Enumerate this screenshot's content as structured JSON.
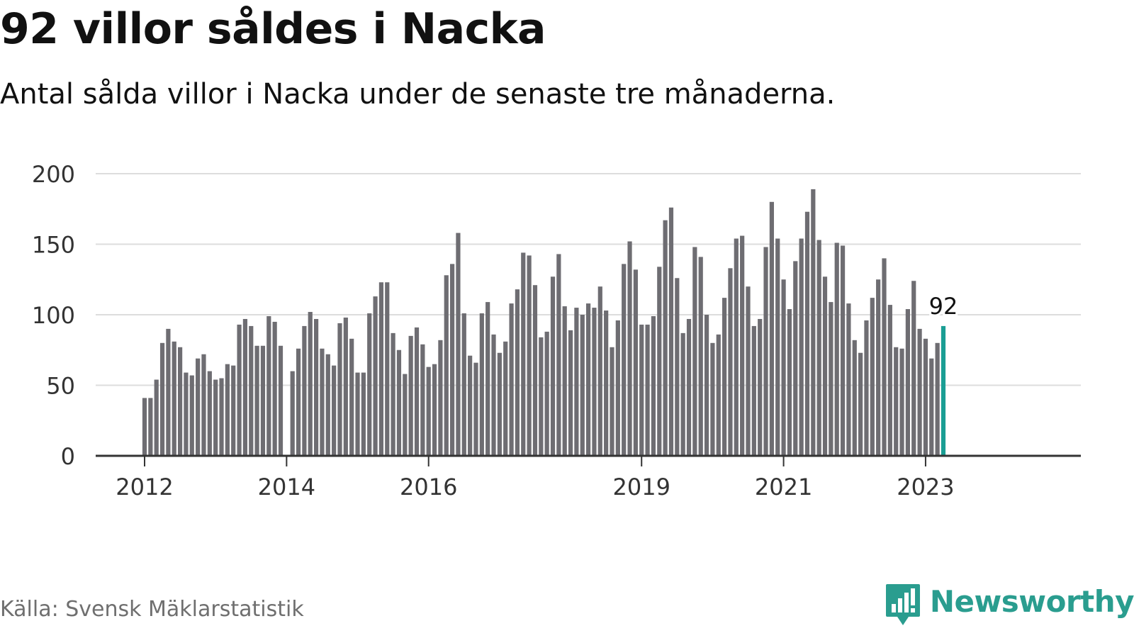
{
  "title": "92 villor såldes i Nacka",
  "subtitle": "Antal sålda villor i Nacka under de senaste tre månaderna.",
  "source": "Källa: Svensk Mäklarstatistik",
  "brand": {
    "name": "Newsworthy",
    "icon": "newsworthy-logo-icon",
    "color": "#2a9d8f"
  },
  "colors": {
    "bar": "#6e6d72",
    "highlight": "#1a9e94",
    "grid": "#dddddd",
    "axis": "#333333",
    "tick_text": "#333333"
  },
  "chart_data": {
    "type": "bar",
    "title": "92 villor såldes i Nacka",
    "xlabel": "",
    "ylabel": "",
    "ylim": [
      0,
      200
    ],
    "yticks": [
      0,
      50,
      100,
      150,
      200
    ],
    "grid": true,
    "start": "2012-01",
    "xticks": [
      {
        "label": "2012",
        "index": 0
      },
      {
        "label": "2014",
        "index": 24
      },
      {
        "label": "2016",
        "index": 48
      },
      {
        "label": "2019",
        "index": 84
      },
      {
        "label": "2021",
        "index": 108
      },
      {
        "label": "2023",
        "index": 132
      }
    ],
    "series": [
      {
        "name": "Antal sålda villor (rullande tre månader)",
        "values": [
          41,
          41,
          54,
          80,
          90,
          81,
          77,
          59,
          57,
          69,
          72,
          60,
          54,
          55,
          65,
          64,
          93,
          97,
          92,
          78,
          78,
          99,
          95,
          78,
          0,
          60,
          76,
          92,
          102,
          97,
          76,
          72,
          64,
          94,
          98,
          83,
          59,
          59,
          101,
          113,
          123,
          123,
          87,
          75,
          58,
          85,
          91,
          79,
          63,
          65,
          82,
          128,
          136,
          158,
          101,
          71,
          66,
          101,
          109,
          86,
          73,
          81,
          108,
          118,
          144,
          142,
          121,
          84,
          88,
          127,
          143,
          106,
          89,
          105,
          100,
          108,
          105,
          120,
          103,
          77,
          96,
          136,
          152,
          132,
          93,
          93,
          99,
          134,
          167,
          176,
          126,
          87,
          97,
          148,
          141,
          100,
          80,
          86,
          112,
          133,
          154,
          156,
          120,
          92,
          97,
          148,
          180,
          154,
          125,
          104,
          138,
          154,
          173,
          189,
          153,
          127,
          109,
          151,
          149,
          108,
          82,
          73,
          96,
          112,
          125,
          140,
          107,
          77,
          76,
          104,
          124,
          90,
          83,
          69,
          80,
          92
        ]
      }
    ],
    "highlight": {
      "index": 135,
      "value": 92,
      "label": "92"
    }
  }
}
